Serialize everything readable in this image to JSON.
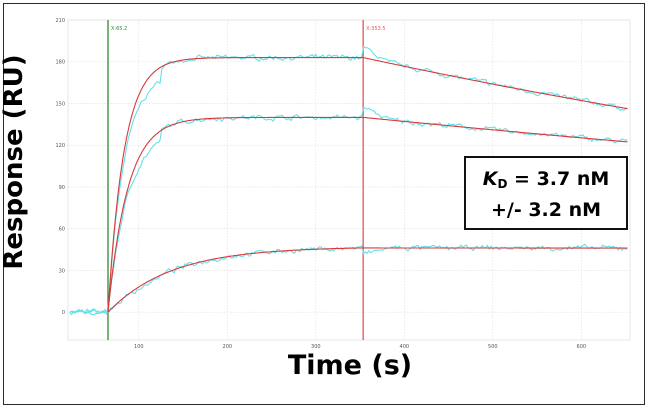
{
  "chart_data": {
    "type": "line",
    "xlabel": "Time (s)",
    "ylabel": "Response (RU)",
    "xlim": [
      20,
      655
    ],
    "ylim": [
      -20,
      210
    ],
    "xticks": [
      100,
      200,
      300,
      400,
      500,
      600
    ],
    "yticks": [
      0,
      30,
      60,
      90,
      120,
      150,
      180,
      210
    ],
    "grid": true,
    "markers": [
      {
        "x": 65.2,
        "label": "X:65.2",
        "color": "#2e8b2e"
      },
      {
        "x": 353.5,
        "label": "X:353.5",
        "color": "#e05555"
      }
    ],
    "annotation": {
      "kd_label": "K",
      "kd_subscript": "D",
      "kd_value": " = 3.7 nM",
      "error": "+/- 3.2 nM"
    },
    "fit_model": "1:1 binding; association from t=65.2 s, dissociation from t=353.5 s",
    "series": [
      {
        "kind": "data",
        "color": "#66e0e8",
        "plateau": 183,
        "kobs": 0.055,
        "kd_rate": 0.00075
      },
      {
        "kind": "data",
        "color": "#66e0e8",
        "plateau": 140,
        "kobs": 0.045,
        "kd_rate": 0.00045
      },
      {
        "kind": "data",
        "color": "#66e0e8",
        "plateau": 47,
        "kobs": 0.014,
        "kd_rate": 1e-05
      },
      {
        "kind": "fit",
        "color": "#d93a3a",
        "plateau": 183,
        "kobs": 0.055,
        "kd_rate": 0.00075
      },
      {
        "kind": "fit",
        "color": "#d93a3a",
        "plateau": 140,
        "kobs": 0.045,
        "kd_rate": 0.00045
      },
      {
        "kind": "fit",
        "color": "#d93a3a",
        "plateau": 47,
        "kobs": 0.014,
        "kd_rate": 1e-05
      }
    ]
  }
}
